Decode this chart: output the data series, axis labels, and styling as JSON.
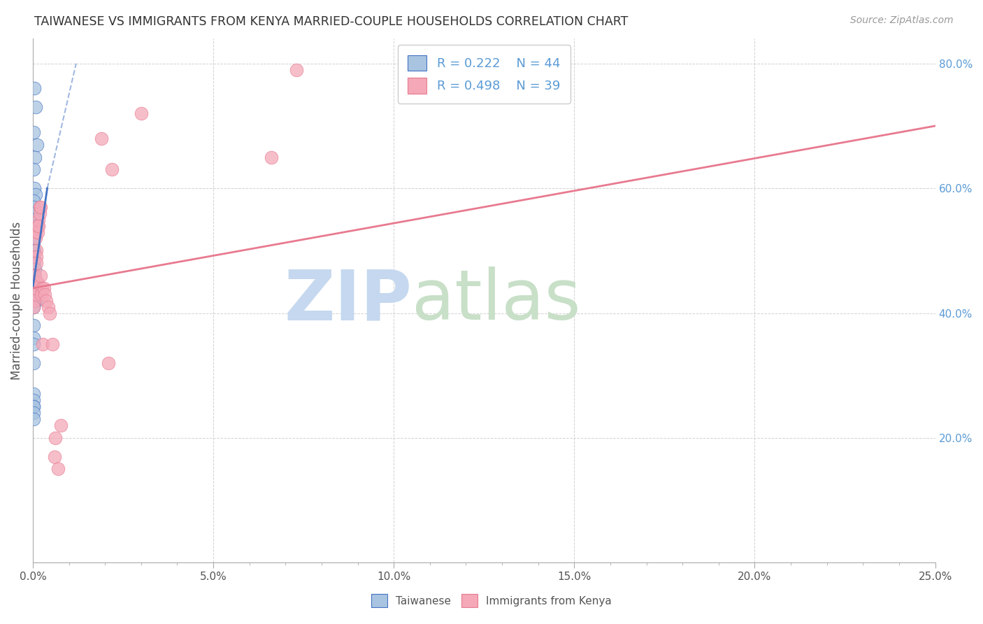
{
  "title": "TAIWANESE VS IMMIGRANTS FROM KENYA MARRIED-COUPLE HOUSEHOLDS CORRELATION CHART",
  "source": "Source: ZipAtlas.com",
  "ylabel": "Married-couple Households",
  "x_label_taiwanese": "Taiwanese",
  "x_label_kenya": "Immigrants from Kenya",
  "xlim": [
    0.0,
    0.25
  ],
  "ylim": [
    0.0,
    0.84
  ],
  "xticks_major": [
    0.0,
    0.05,
    0.1,
    0.15,
    0.2,
    0.25
  ],
  "xtick_labels": [
    "0.0%",
    "5.0%",
    "10.0%",
    "15.0%",
    "20.0%",
    "25.0%"
  ],
  "yticks": [
    0.2,
    0.4,
    0.6,
    0.8
  ],
  "ytick_labels": [
    "20.0%",
    "40.0%",
    "60.0%",
    "80.0%"
  ],
  "color_taiwanese": "#a8c4e0",
  "color_kenya": "#f4a8b8",
  "trendline_taiwanese": "#4472c4",
  "trendline_kenya": "#e87a90",
  "watermark_zip": "ZIP",
  "watermark_atlas": "atlas",
  "watermark_color_zip": "#c5d8ef",
  "watermark_color_atlas": "#c8dfc8",
  "blue_scatter_x": [
    0.0005,
    0.0008,
    0.0003,
    0.0012,
    0.0006,
    0.0002,
    0.0004,
    0.0007,
    0.0003,
    0.0002,
    0.0003,
    0.0002,
    0.0005,
    0.001,
    0.0002,
    0.0006,
    0.0003,
    0.0002,
    0.0005,
    0.0002,
    0.0003,
    0.0002,
    0.0002,
    0.0006,
    0.0002,
    0.0005,
    0.0002,
    0.0009,
    0.0002,
    0.0002,
    0.0013,
    0.001,
    0.0006,
    0.0002,
    0.0002,
    0.0002,
    0.0002,
    0.0002,
    0.0002,
    0.0002,
    0.0002,
    0.0002,
    0.0002,
    0.0002
  ],
  "blue_scatter_y": [
    0.76,
    0.73,
    0.69,
    0.67,
    0.65,
    0.63,
    0.6,
    0.59,
    0.58,
    0.57,
    0.56,
    0.55,
    0.54,
    0.54,
    0.53,
    0.53,
    0.52,
    0.51,
    0.5,
    0.5,
    0.49,
    0.48,
    0.48,
    0.47,
    0.46,
    0.46,
    0.45,
    0.45,
    0.44,
    0.43,
    0.43,
    0.42,
    0.42,
    0.41,
    0.38,
    0.36,
    0.35,
    0.32,
    0.27,
    0.26,
    0.25,
    0.25,
    0.24,
    0.23
  ],
  "pink_scatter_x": [
    0.0003,
    0.0004,
    0.0003,
    0.0004,
    0.0003,
    0.0007,
    0.0007,
    0.0006,
    0.001,
    0.001,
    0.0009,
    0.0014,
    0.0013,
    0.0012,
    0.0016,
    0.0015,
    0.002,
    0.0019,
    0.0022,
    0.0021,
    0.0025,
    0.0024,
    0.0028,
    0.0032,
    0.0034,
    0.0037,
    0.0042,
    0.0047,
    0.0054,
    0.0062,
    0.0061,
    0.0069,
    0.0078,
    0.019,
    0.021,
    0.022,
    0.03,
    0.066,
    0.073
  ],
  "pink_scatter_y": [
    0.45,
    0.44,
    0.43,
    0.42,
    0.41,
    0.53,
    0.52,
    0.46,
    0.5,
    0.49,
    0.48,
    0.54,
    0.53,
    0.45,
    0.55,
    0.54,
    0.57,
    0.56,
    0.57,
    0.46,
    0.44,
    0.43,
    0.35,
    0.44,
    0.43,
    0.42,
    0.41,
    0.4,
    0.35,
    0.2,
    0.17,
    0.15,
    0.22,
    0.68,
    0.32,
    0.63,
    0.72,
    0.65,
    0.79
  ],
  "trendline_blue_x0": 0.0,
  "trendline_blue_x1": 0.004,
  "trendline_blue_y0": 0.44,
  "trendline_blue_y1": 0.6,
  "trendline_blue_dash_x1": 0.012,
  "trendline_blue_dash_y1": 0.8,
  "trendline_pink_x0": 0.0,
  "trendline_pink_x1": 0.25,
  "trendline_pink_y0": 0.44,
  "trendline_pink_y1": 0.7
}
